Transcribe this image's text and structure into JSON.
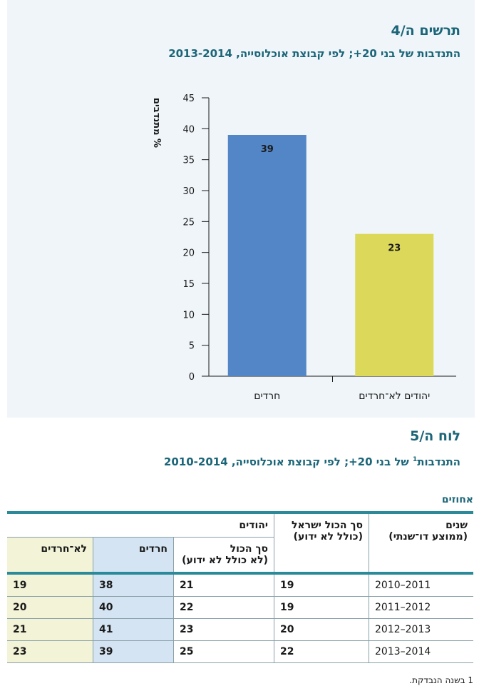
{
  "figure": {
    "title": "תרשים ה/4",
    "subtitle": "התנדבות של בני 20+; לפי קבוצת אוכלוסייה, 2013-2014",
    "colors": {
      "haredi": "#5386c6",
      "nonharedi": "#dcd95a",
      "panel_bg": "#f0f5f9",
      "title": "#1a6578"
    }
  },
  "chart_data": {
    "type": "bar",
    "title": "התנדבות של בני 20+; לפי קבוצת אוכלוסייה, 2013-2014",
    "ylabel": "% מתנדבים",
    "xlabel": "",
    "categories": [
      "חרדים",
      "יהודים לא־חרדים"
    ],
    "values": [
      39,
      23
    ],
    "data_labels": [
      "39",
      "23"
    ],
    "ylim": [
      0,
      45
    ],
    "yticks": [
      0,
      5,
      10,
      15,
      20,
      25,
      30,
      35,
      40,
      45
    ],
    "grid": false,
    "legend": "none"
  },
  "table": {
    "title": "לוח ה/5",
    "subtitle_main": "התנדבות",
    "subtitle_sup": "1",
    "subtitle_rest": " של בני 20+; לפי קבוצת אוכלוסייה, 2010-2014",
    "unit": "אחוזים",
    "headers": {
      "years": "שנים",
      "years_note": "(ממוצע דו־שנתי)",
      "total_israel": "סך הכול ישראל",
      "total_israel_note": "(כולל לא ידוע)",
      "jews": "יהודים",
      "jews_total": "סך הכול",
      "jews_total_note": "(לא כולל לא ידוע)",
      "haredi": "חרדים",
      "nonharedi": "לא־חרדים"
    },
    "rows": [
      {
        "years": "2011–2010",
        "total_israel": "19",
        "jews_total": "21",
        "haredi": "38",
        "nonharedi": "19"
      },
      {
        "years": "2012–2011",
        "total_israel": "19",
        "jews_total": "22",
        "haredi": "40",
        "nonharedi": "20"
      },
      {
        "years": "2013–2012",
        "total_israel": "20",
        "jews_total": "23",
        "haredi": "41",
        "nonharedi": "21"
      },
      {
        "years": "2014–2013",
        "total_israel": "22",
        "jews_total": "25",
        "haredi": "39",
        "nonharedi": "23"
      }
    ],
    "footnote": "1 בשנה הנבדקת."
  }
}
